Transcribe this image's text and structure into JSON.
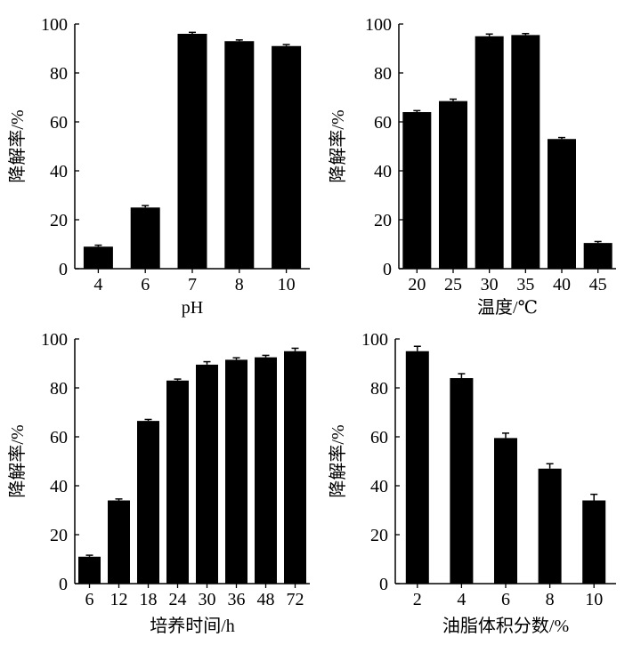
{
  "chart_data": [
    {
      "type": "bar",
      "xlabel": "pH",
      "ylabel": "降解率/%",
      "categories": [
        "4",
        "6",
        "7",
        "8",
        "10"
      ],
      "values": [
        9,
        25,
        96,
        93,
        91
      ],
      "errors": [
        0.6,
        0.8,
        0.6,
        0.5,
        0.6
      ],
      "ylim": [
        0,
        100
      ],
      "yticks": [
        "0",
        "20",
        "40",
        "60",
        "80",
        "100"
      ]
    },
    {
      "type": "bar",
      "xlabel": "温度/℃",
      "ylabel": "降解率/%",
      "categories": [
        "20",
        "25",
        "30",
        "35",
        "40",
        "45"
      ],
      "values": [
        64,
        68.5,
        95,
        95.5,
        53,
        10.5
      ],
      "errors": [
        0.6,
        0.8,
        0.9,
        0.6,
        0.6,
        0.6
      ],
      "ylim": [
        0,
        100
      ],
      "yticks": [
        "0",
        "20",
        "40",
        "60",
        "80",
        "100"
      ]
    },
    {
      "type": "bar",
      "xlabel": "培养时间/h",
      "ylabel": "降解率/%",
      "categories": [
        "6",
        "12",
        "18",
        "24",
        "30",
        "36",
        "48",
        "72"
      ],
      "values": [
        11,
        34,
        66.5,
        83,
        89.5,
        91.5,
        92.5,
        95
      ],
      "errors": [
        0.6,
        0.6,
        0.6,
        0.6,
        1.2,
        0.8,
        0.8,
        1.2
      ],
      "ylim": [
        0,
        100
      ],
      "yticks": [
        "0",
        "20",
        "40",
        "60",
        "80",
        "100"
      ]
    },
    {
      "type": "bar",
      "xlabel": "油脂体积分数/%",
      "ylabel": "降解率/%",
      "categories": [
        "2",
        "4",
        "6",
        "8",
        "10"
      ],
      "values": [
        95,
        84,
        59.5,
        47,
        34
      ],
      "errors": [
        2,
        1.8,
        2,
        2,
        2.5
      ],
      "ylim": [
        0,
        100
      ],
      "yticks": [
        "0",
        "20",
        "40",
        "60",
        "80",
        "100"
      ]
    }
  ]
}
